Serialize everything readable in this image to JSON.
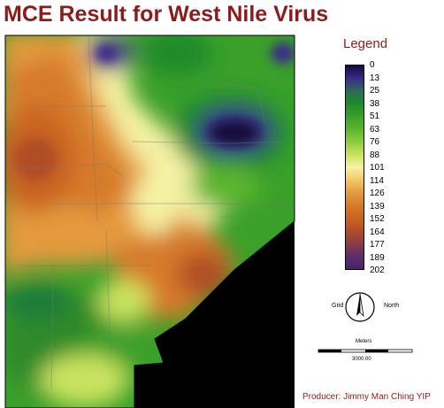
{
  "title": "MCE Result for West Nile Virus",
  "legend": {
    "title": "Legend",
    "labels": [
      "0",
      "13",
      "25",
      "38",
      "51",
      "63",
      "76",
      "88",
      "101",
      "114",
      "126",
      "139",
      "152",
      "164",
      "177",
      "189",
      "202"
    ],
    "colors": [
      "#150a3d",
      "#3a2a8a",
      "#2f6a5a",
      "#1f8a2a",
      "#3aa02a",
      "#5cb52e",
      "#8ccc3c",
      "#c9e25e",
      "#f5f2a4",
      "#f3c766",
      "#e49a3e",
      "#d67a2a",
      "#c96420",
      "#b04e28",
      "#8a3c4a",
      "#5a2f6a",
      "#4a2466"
    ]
  },
  "compass": {
    "left_label": "Grid",
    "right_label": "North"
  },
  "scale": {
    "unit_label": "Meters",
    "value_label": "3000.00"
  },
  "producer": "Producer: Jimmy Man Ching YIP"
}
